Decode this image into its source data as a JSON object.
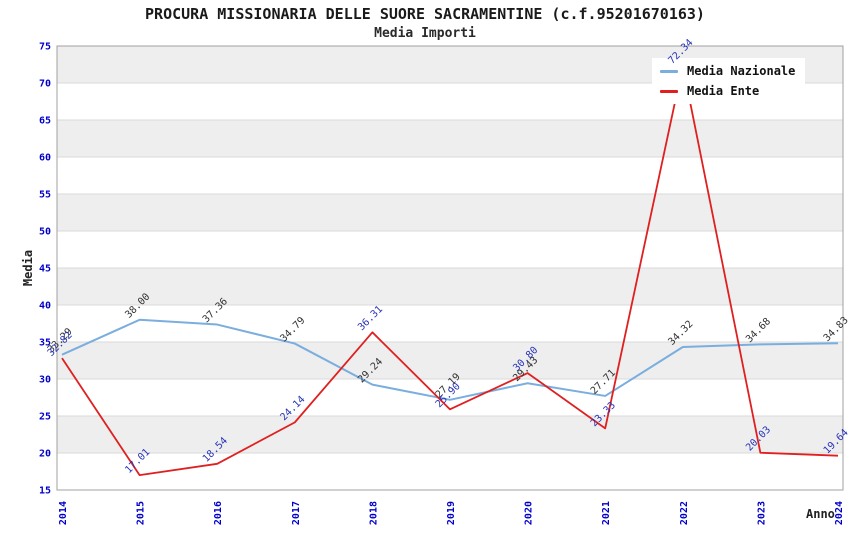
{
  "title": "PROCURA MISSIONARIA DELLE SUORE SACRAMENTINE (c.f.95201670163)",
  "subtitle": "Media Importi",
  "chart_data": {
    "type": "line",
    "title": "PROCURA MISSIONARIA DELLE SUORE SACRAMENTINE (c.f.95201670163)",
    "subtitle": "Media Importi",
    "categories": [
      "2014",
      "2015",
      "2016",
      "2017",
      "2018",
      "2019",
      "2020",
      "2021",
      "2022",
      "2023",
      "2024"
    ],
    "xlabel": "Anno",
    "ylabel": "Media",
    "ylim": [
      15,
      75
    ],
    "yticks": [
      15,
      20,
      25,
      30,
      35,
      40,
      45,
      50,
      55,
      60,
      65,
      70,
      75
    ],
    "grid": "alternating horizontal gray/white bands every 5 units with light gridlines",
    "legend_position": "top-right",
    "point_labels_visible": true,
    "series": [
      {
        "name": "Media Nazionale",
        "color": "#7aaede",
        "label_color": "#333333",
        "values": [
          33.29,
          38.0,
          37.36,
          34.79,
          29.24,
          27.19,
          29.43,
          27.71,
          34.32,
          34.68,
          34.83
        ]
      },
      {
        "name": "Media Ente",
        "color": "#e02020",
        "label_color": "#2a35b8",
        "values": [
          32.82,
          17.01,
          18.54,
          24.14,
          36.31,
          25.9,
          30.8,
          23.33,
          72.34,
          20.03,
          19.64
        ]
      }
    ]
  },
  "colors": {
    "tick_label": "#0000cc",
    "band_gray": "#eeeeee",
    "band_white": "#ffffff",
    "gridline": "#d9d9d9",
    "plot_border": "#a0a0a0",
    "background": "#ffffff"
  }
}
